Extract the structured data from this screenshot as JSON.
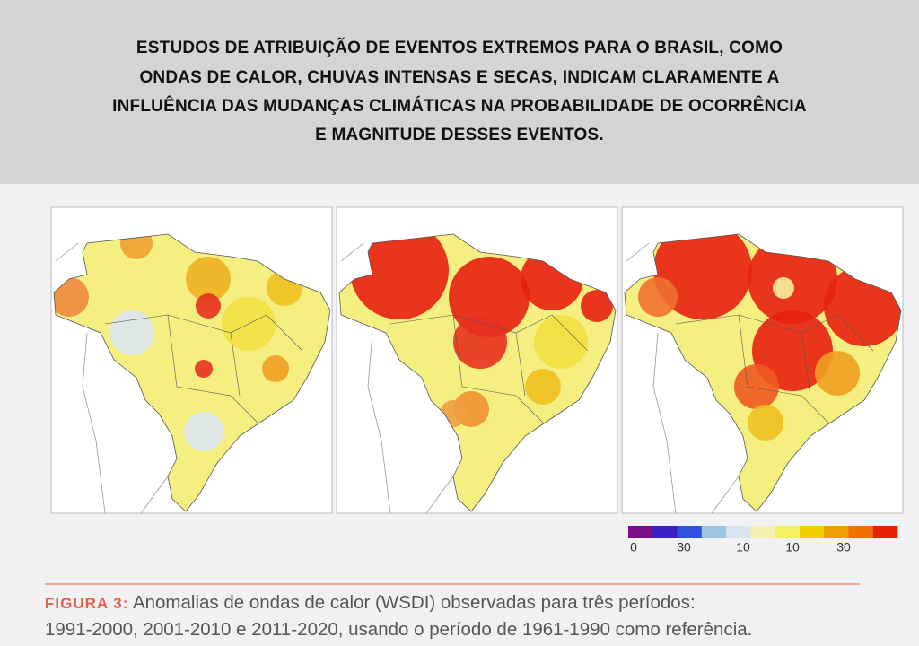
{
  "header": {
    "lines": [
      "ESTUDOS DE ATRIBUIÇÃO DE EVENTOS EXTREMOS PARA O BRASIL, COMO",
      "ONDAS DE CALOR, CHUVAS INTENSAS E SECAS, INDICAM CLARAMENTE A",
      "INFLUÊNCIA DAS MUDANÇAS CLIMÁTICAS NA PROBABILIDADE DE OCORRÊNCIA",
      "E MAGNITUDE DESSES EVENTOS."
    ]
  },
  "legend": {
    "labels": [
      "0",
      "30",
      "10",
      "10",
      "30"
    ]
  },
  "caption": {
    "label": "FIGURA 3:",
    "lines": [
      "Anomalias de ondas de calor (WSDI) observadas para três períodos:",
      "1991-2000, 2001-2010 e 2011-2020, usando o período de 1961-1990 como referência."
    ]
  }
}
